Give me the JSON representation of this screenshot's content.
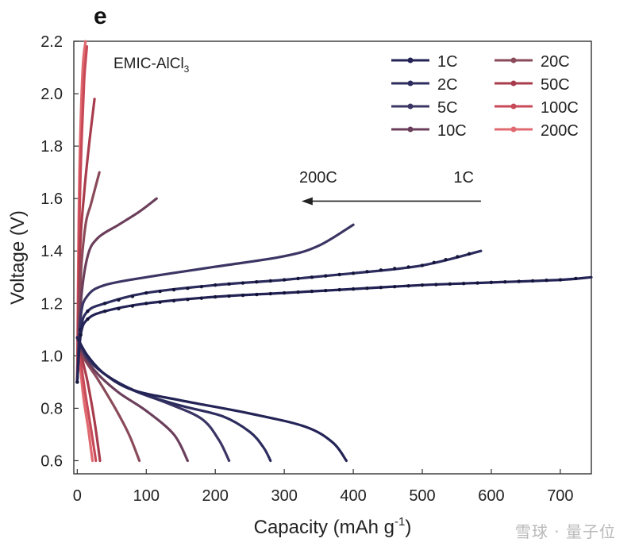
{
  "panel_label": "e",
  "watermark": "雪球 · 量子位",
  "chart_data": {
    "type": "line",
    "title": "",
    "electrolyte_label_main": "EMIC-AlCl",
    "electrolyte_label_sub": "3",
    "xlabel_main": "Capacity (mAh g",
    "xlabel_sup": "-1",
    "xlabel_tail": ")",
    "ylabel": "Voltage (V)",
    "xlim": [
      -5,
      745
    ],
    "ylim": [
      0.55,
      2.2
    ],
    "xticks": [
      0,
      100,
      200,
      300,
      400,
      500,
      600,
      700
    ],
    "yticks": [
      0.6,
      0.8,
      1.0,
      1.2,
      1.4,
      1.6,
      1.8,
      2.0,
      2.2
    ],
    "grid": false,
    "legend_position": "top-right",
    "arrow_annotation": {
      "left_label": "200C",
      "right_label": "1C",
      "x_from": 585,
      "x_to": 325,
      "y": 1.59
    },
    "series": [
      {
        "name": "1C",
        "color": "#242356",
        "charge": [
          [
            0,
            0.9
          ],
          [
            5,
            1.08
          ],
          [
            15,
            1.14
          ],
          [
            40,
            1.17
          ],
          [
            100,
            1.2
          ],
          [
            200,
            1.225
          ],
          [
            300,
            1.24
          ],
          [
            400,
            1.255
          ],
          [
            500,
            1.27
          ],
          [
            600,
            1.28
          ],
          [
            700,
            1.29
          ],
          [
            745,
            1.3
          ]
        ],
        "discharge": [
          [
            0,
            1.07
          ],
          [
            15,
            1.0
          ],
          [
            40,
            0.93
          ],
          [
            80,
            0.87
          ],
          [
            150,
            0.83
          ],
          [
            250,
            0.78
          ],
          [
            330,
            0.73
          ],
          [
            370,
            0.67
          ],
          [
            390,
            0.6
          ]
        ]
      },
      {
        "name": "2C",
        "color": "#2c2c5e",
        "charge": [
          [
            0,
            0.9
          ],
          [
            5,
            1.1
          ],
          [
            15,
            1.17
          ],
          [
            40,
            1.2
          ],
          [
            100,
            1.24
          ],
          [
            200,
            1.27
          ],
          [
            300,
            1.29
          ],
          [
            400,
            1.315
          ],
          [
            500,
            1.345
          ],
          [
            585,
            1.4
          ]
        ],
        "discharge": [
          [
            0,
            1.07
          ],
          [
            15,
            1.0
          ],
          [
            40,
            0.93
          ],
          [
            90,
            0.86
          ],
          [
            150,
            0.81
          ],
          [
            210,
            0.77
          ],
          [
            250,
            0.71
          ],
          [
            270,
            0.65
          ],
          [
            280,
            0.6
          ]
        ]
      },
      {
        "name": "5C",
        "color": "#3b3564",
        "charge": [
          [
            0,
            0.9
          ],
          [
            5,
            1.15
          ],
          [
            15,
            1.23
          ],
          [
            40,
            1.27
          ],
          [
            100,
            1.3
          ],
          [
            200,
            1.34
          ],
          [
            300,
            1.38
          ],
          [
            350,
            1.42
          ],
          [
            400,
            1.5
          ]
        ],
        "discharge": [
          [
            0,
            1.07
          ],
          [
            15,
            0.99
          ],
          [
            40,
            0.93
          ],
          [
            80,
            0.87
          ],
          [
            130,
            0.82
          ],
          [
            180,
            0.76
          ],
          [
            205,
            0.68
          ],
          [
            220,
            0.6
          ]
        ]
      },
      {
        "name": "10C",
        "color": "#6b3f5b",
        "charge": [
          [
            0,
            0.9
          ],
          [
            5,
            1.2
          ],
          [
            15,
            1.38
          ],
          [
            30,
            1.45
          ],
          [
            60,
            1.5
          ],
          [
            90,
            1.55
          ],
          [
            115,
            1.6
          ]
        ],
        "discharge": [
          [
            0,
            1.07
          ],
          [
            10,
            1.0
          ],
          [
            30,
            0.93
          ],
          [
            60,
            0.86
          ],
          [
            100,
            0.79
          ],
          [
            140,
            0.7
          ],
          [
            160,
            0.6
          ]
        ]
      },
      {
        "name": "20C",
        "color": "#8a4a5a",
        "charge": [
          [
            0,
            0.9
          ],
          [
            5,
            1.3
          ],
          [
            12,
            1.5
          ],
          [
            20,
            1.58
          ],
          [
            32,
            1.7
          ]
        ],
        "discharge": [
          [
            0,
            1.07
          ],
          [
            10,
            0.99
          ],
          [
            30,
            0.91
          ],
          [
            55,
            0.8
          ],
          [
            75,
            0.7
          ],
          [
            90,
            0.6
          ]
        ]
      },
      {
        "name": "50C",
        "color": "#a83c4c",
        "charge": [
          [
            0,
            0.9
          ],
          [
            4,
            1.4
          ],
          [
            10,
            1.62
          ],
          [
            16,
            1.78
          ],
          [
            25,
            1.98
          ]
        ],
        "discharge": [
          [
            0,
            1.07
          ],
          [
            6,
            1.0
          ],
          [
            15,
            0.9
          ],
          [
            25,
            0.75
          ],
          [
            33,
            0.6
          ]
        ]
      },
      {
        "name": "100C",
        "color": "#c84a58",
        "charge": [
          [
            0,
            0.9
          ],
          [
            3,
            1.5
          ],
          [
            6,
            1.8
          ],
          [
            10,
            2.05
          ],
          [
            14,
            2.18
          ]
        ],
        "discharge": [
          [
            0,
            1.07
          ],
          [
            5,
            0.98
          ],
          [
            12,
            0.85
          ],
          [
            20,
            0.72
          ],
          [
            27,
            0.6
          ]
        ]
      },
      {
        "name": "200C",
        "color": "#e06a70",
        "charge": [
          [
            0,
            0.9
          ],
          [
            2,
            1.5
          ],
          [
            4,
            1.8
          ],
          [
            8,
            2.1
          ],
          [
            12,
            2.2
          ]
        ],
        "discharge": [
          [
            0,
            1.07
          ],
          [
            4,
            0.97
          ],
          [
            9,
            0.84
          ],
          [
            16,
            0.72
          ],
          [
            22,
            0.6
          ]
        ]
      }
    ]
  }
}
